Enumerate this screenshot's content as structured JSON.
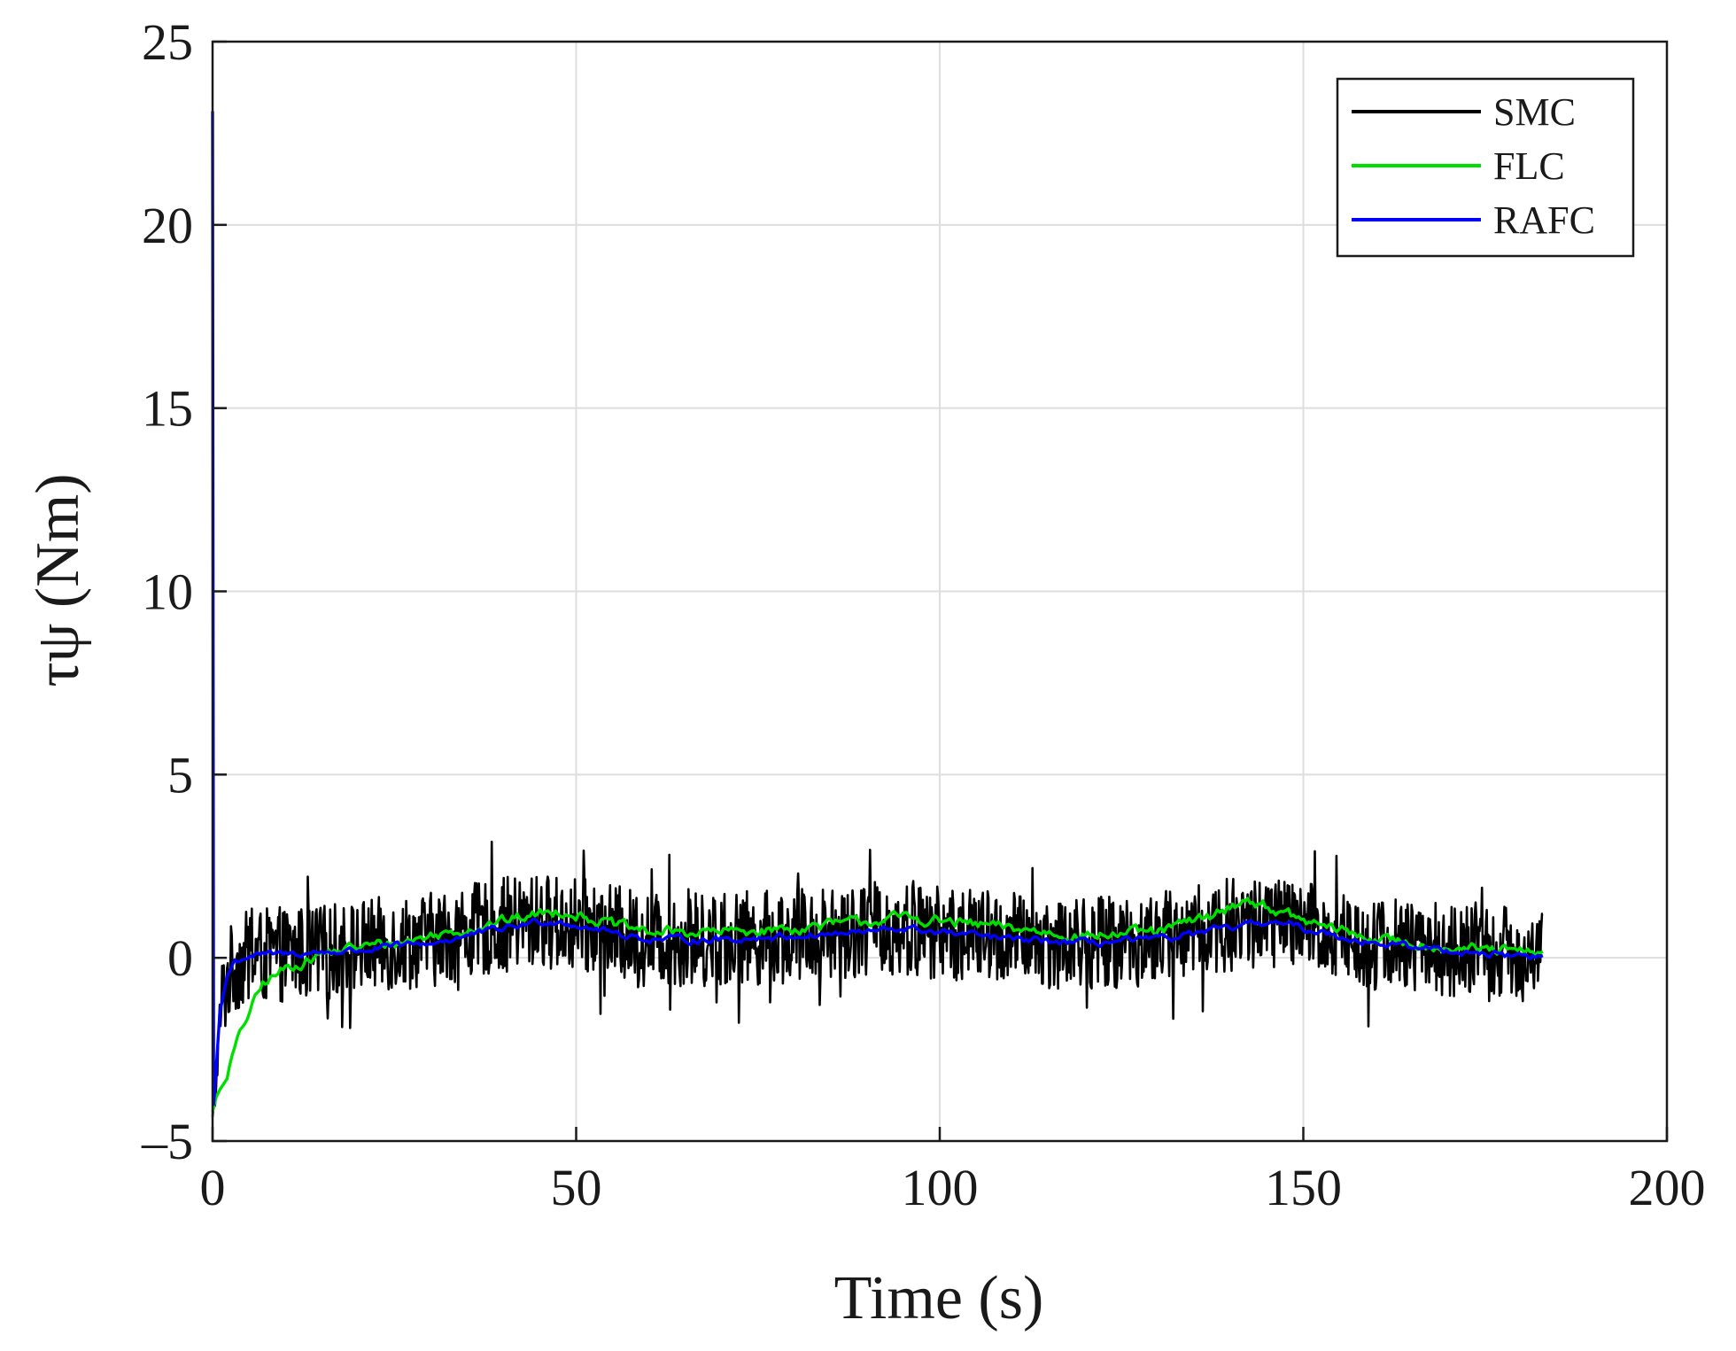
{
  "chart_data": {
    "type": "line",
    "xlabel": "Time (s)",
    "ylabel": "τψ (Nm)",
    "xlim": [
      0,
      200
    ],
    "ylim": [
      -5,
      25
    ],
    "xticks": [
      0,
      50,
      100,
      150,
      200
    ],
    "yticks": [
      -5,
      0,
      5,
      10,
      15,
      20,
      25
    ],
    "xtick_labels": [
      "0",
      "50",
      "100",
      "150",
      "200"
    ],
    "ytick_labels": [
      "–5",
      "0",
      "5",
      "10",
      "15",
      "20",
      "25"
    ],
    "grid": true,
    "legend_position": "top-right",
    "series": [
      {
        "name": "SMC",
        "color": "#000000",
        "style": "noisy",
        "noise_amplitude": 1.3,
        "x": [
          0,
          0.5,
          1,
          2,
          3,
          5,
          10,
          15,
          20,
          30,
          40,
          45,
          50,
          55,
          60,
          70,
          80,
          90,
          100,
          110,
          120,
          130,
          140,
          145,
          150,
          160,
          170,
          175,
          183
        ],
        "y": [
          -4.5,
          -3.5,
          -1.5,
          -0.6,
          -0.2,
          0.0,
          0.1,
          0.15,
          0.3,
          0.5,
          0.9,
          1.0,
          0.9,
          0.7,
          0.5,
          0.5,
          0.6,
          0.8,
          0.7,
          0.5,
          0.4,
          0.5,
          0.9,
          1.0,
          0.8,
          0.4,
          0.2,
          0.1,
          0.1
        ]
      },
      {
        "name": "FLC",
        "color": "#00e000",
        "style": "smooth",
        "noise_amplitude": 0.12,
        "x": [
          0,
          0.5,
          1,
          2,
          3,
          5,
          7,
          10,
          15,
          20,
          25,
          30,
          40,
          45,
          48,
          50,
          55,
          60,
          70,
          80,
          90,
          95,
          100,
          110,
          120,
          130,
          138,
          142,
          145,
          150,
          160,
          170,
          175,
          180,
          183
        ],
        "y": [
          -4.2,
          -3.8,
          -3.6,
          -3.2,
          -2.5,
          -1.5,
          -0.7,
          -0.3,
          0.1,
          0.3,
          0.4,
          0.6,
          1.0,
          1.2,
          1.3,
          1.2,
          0.9,
          0.7,
          0.7,
          0.8,
          1.0,
          1.1,
          1.0,
          0.8,
          0.6,
          0.7,
          1.2,
          1.6,
          1.4,
          1.0,
          0.5,
          0.3,
          0.2,
          0.15,
          0.1
        ]
      },
      {
        "name": "RAFC",
        "color": "#0000ff",
        "style": "smooth",
        "noise_amplitude": 0.08,
        "x": [
          0,
          0.15,
          0.3,
          1,
          2,
          3,
          5,
          10,
          20,
          30,
          40,
          45,
          48,
          50,
          55,
          60,
          70,
          80,
          90,
          95,
          100,
          110,
          120,
          130,
          140,
          145,
          150,
          160,
          170,
          180,
          183
        ],
        "y": [
          23.1,
          -4.0,
          -3.6,
          -1.5,
          -0.5,
          -0.1,
          0.05,
          0.1,
          0.2,
          0.4,
          0.8,
          1.0,
          1.0,
          0.9,
          0.7,
          0.5,
          0.5,
          0.6,
          0.7,
          0.8,
          0.7,
          0.5,
          0.4,
          0.5,
          0.8,
          1.0,
          0.8,
          0.4,
          0.2,
          0.05,
          0.05
        ]
      }
    ]
  }
}
